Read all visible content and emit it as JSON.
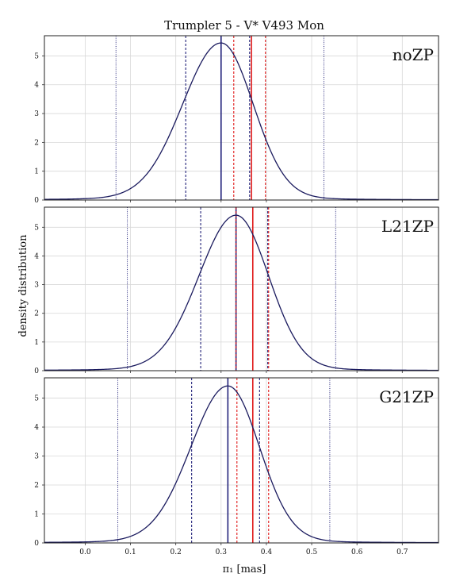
{
  "chart_data": {
    "type": "line",
    "title": "Trumpler 5 - V* V493 Mon",
    "xlabel": "π₁ [mas]",
    "ylabel": "density distribution",
    "xlim": [
      -0.09,
      0.78
    ],
    "ylim": [
      0,
      5.7
    ],
    "x_ticks": [
      "0.0",
      "0.1",
      "0.2",
      "0.3",
      "0.4",
      "0.5",
      "0.6",
      "0.7"
    ],
    "y_ticks": [
      "0",
      "1",
      "2",
      "3",
      "4",
      "5"
    ],
    "grid": true,
    "colors": {
      "curve": "#1a1a5e",
      "blue": "#22227a",
      "red": "#e01818"
    },
    "panels": [
      {
        "label": "noZP",
        "series": [
          {
            "peak_x": 0.3,
            "peak_y": 5.45,
            "scale_left": 0.085,
            "scale_right": 0.071,
            "tail": 0.05
          }
        ],
        "vlines": [
          {
            "x": 0.3,
            "color": "blue",
            "style": "solid"
          },
          {
            "x": 0.222,
            "color": "blue",
            "style": "dashed"
          },
          {
            "x": 0.363,
            "color": "blue",
            "style": "dashed"
          },
          {
            "x": 0.068,
            "color": "blue",
            "style": "dotted"
          },
          {
            "x": 0.527,
            "color": "blue",
            "style": "dotted"
          },
          {
            "x": 0.367,
            "color": "red",
            "style": "solid"
          },
          {
            "x": 0.328,
            "color": "red",
            "style": "dashed"
          },
          {
            "x": 0.398,
            "color": "red",
            "style": "dashed"
          }
        ]
      },
      {
        "label": "L21ZP",
        "series": [
          {
            "peak_x": 0.333,
            "peak_y": 5.42,
            "scale_left": 0.082,
            "scale_right": 0.072,
            "tail": 0.05
          }
        ],
        "vlines": [
          {
            "x": 0.333,
            "color": "blue",
            "style": "solid"
          },
          {
            "x": 0.255,
            "color": "blue",
            "style": "dashed"
          },
          {
            "x": 0.403,
            "color": "blue",
            "style": "dashed"
          },
          {
            "x": 0.093,
            "color": "blue",
            "style": "dotted"
          },
          {
            "x": 0.553,
            "color": "blue",
            "style": "dotted"
          },
          {
            "x": 0.37,
            "color": "red",
            "style": "solid"
          },
          {
            "x": 0.333,
            "color": "red",
            "style": "dashed"
          },
          {
            "x": 0.405,
            "color": "red",
            "style": "dashed"
          }
        ]
      },
      {
        "label": "G21ZP",
        "series": [
          {
            "peak_x": 0.315,
            "peak_y": 5.42,
            "scale_left": 0.082,
            "scale_right": 0.07,
            "tail": 0.05
          }
        ],
        "vlines": [
          {
            "x": 0.315,
            "color": "blue",
            "style": "solid"
          },
          {
            "x": 0.235,
            "color": "blue",
            "style": "dashed"
          },
          {
            "x": 0.385,
            "color": "blue",
            "style": "dashed"
          },
          {
            "x": 0.072,
            "color": "blue",
            "style": "dotted"
          },
          {
            "x": 0.54,
            "color": "blue",
            "style": "dotted"
          },
          {
            "x": 0.37,
            "color": "red",
            "style": "solid"
          },
          {
            "x": 0.335,
            "color": "red",
            "style": "dashed"
          },
          {
            "x": 0.405,
            "color": "red",
            "style": "dashed"
          }
        ]
      }
    ]
  }
}
